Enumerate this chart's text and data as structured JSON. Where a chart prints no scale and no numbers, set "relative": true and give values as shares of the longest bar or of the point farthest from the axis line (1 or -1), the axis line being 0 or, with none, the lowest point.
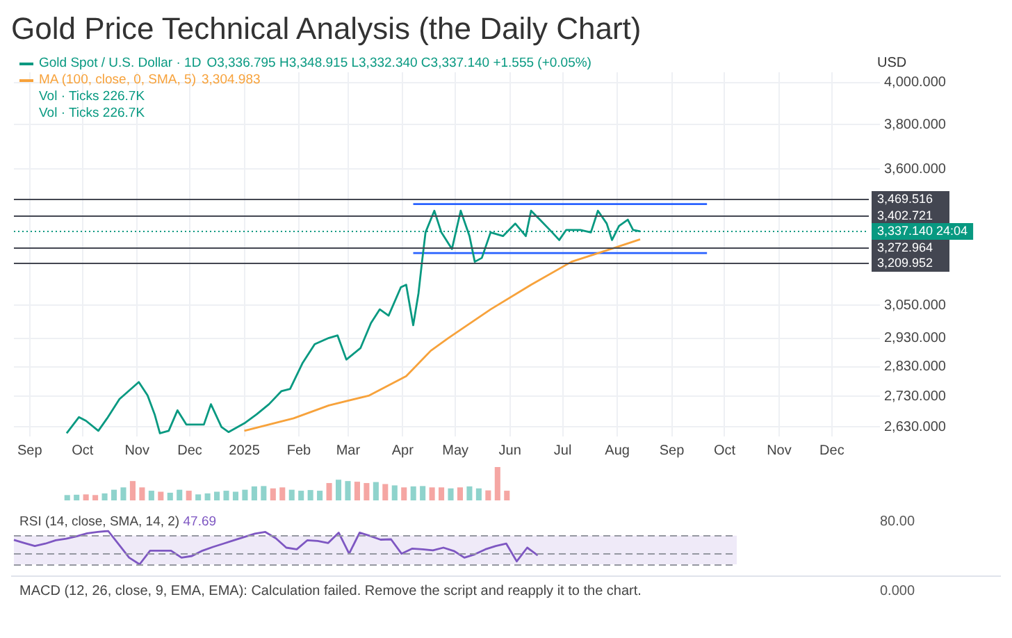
{
  "chart_data": [
    {
      "type": "line",
      "title": "Gold Price Technical Analysis (the Daily Chart)",
      "ylabel": "USD",
      "log": "y",
      "grid": true,
      "legend": "top left",
      "xlim": [
        "2024-08-23",
        "2025-12-22"
      ],
      "xticks": [
        {
          "value": "2024-09-01",
          "label": "Sep"
        },
        {
          "value": "2024-10-01",
          "label": "Oct"
        },
        {
          "value": "2024-11-01",
          "label": "Nov"
        },
        {
          "value": "2024-12-01",
          "label": "Dec"
        },
        {
          "value": "2025-01-01",
          "label": "2025"
        },
        {
          "value": "2025-02-01",
          "label": "Feb"
        },
        {
          "value": "2025-03-01",
          "label": "Mar"
        },
        {
          "value": "2025-04-01",
          "label": "Apr"
        },
        {
          "value": "2025-05-01",
          "label": "May"
        },
        {
          "value": "2025-06-01",
          "label": "Jun"
        },
        {
          "value": "2025-07-01",
          "label": "Jul"
        },
        {
          "value": "2025-08-01",
          "label": "Aug"
        },
        {
          "value": "2025-09-01",
          "label": "Sep"
        },
        {
          "value": "2025-10-01",
          "label": "Oct"
        },
        {
          "value": "2025-11-01",
          "label": "Nov"
        },
        {
          "value": "2025-12-01",
          "label": "Dec"
        }
      ],
      "ylim": [
        2600,
        4050
      ],
      "yticks": [
        {
          "value": 2630,
          "label": "2,630.000"
        },
        {
          "value": 2730,
          "label": "2,730.000"
        },
        {
          "value": 2830,
          "label": "2,830.000"
        },
        {
          "value": 2930,
          "label": "2,930.000"
        },
        {
          "value": 3050,
          "label": "3,050.000"
        },
        {
          "value": 3600,
          "label": "3,600.000"
        },
        {
          "value": 3800,
          "label": "3,800.000"
        },
        {
          "value": 4000,
          "label": "4,000.000"
        }
      ],
      "series": [
        {
          "name": "Gold Spot / U.S. Dollar · 1D",
          "color": "#089981",
          "x": [
            "2024-09-22",
            "2024-09-29",
            "2024-10-03",
            "2024-10-10",
            "2024-10-15",
            "2024-10-22",
            "2024-11-02",
            "2024-11-07",
            "2024-11-11",
            "2024-11-14",
            "2024-11-19",
            "2024-11-24",
            "2024-11-29",
            "2024-12-09",
            "2024-12-13",
            "2024-12-19",
            "2024-12-23",
            "2025-01-01",
            "2025-01-08",
            "2025-01-15",
            "2025-01-22",
            "2025-01-27",
            "2025-02-03",
            "2025-02-10",
            "2025-02-18",
            "2025-02-23",
            "2025-02-28",
            "2025-03-08",
            "2025-03-14",
            "2025-03-19",
            "2025-03-24",
            "2025-03-31",
            "2025-04-03",
            "2025-04-07",
            "2025-04-10",
            "2025-04-12",
            "2025-04-14",
            "2025-04-19",
            "2025-04-23",
            "2025-04-29",
            "2025-05-04",
            "2025-05-09",
            "2025-05-12",
            "2025-05-16",
            "2025-05-21",
            "2025-05-28",
            "2025-06-04",
            "2025-06-10",
            "2025-06-13",
            "2025-06-18",
            "2025-06-25",
            "2025-06-29",
            "2025-07-03",
            "2025-07-11",
            "2025-07-17",
            "2025-07-21",
            "2025-07-26",
            "2025-07-29",
            "2025-08-02",
            "2025-08-07",
            "2025-08-10",
            "2025-08-14"
          ],
          "values": [
            2610,
            2662,
            2650,
            2618,
            2658,
            2721,
            2778,
            2733,
            2671,
            2610,
            2618,
            2684,
            2638,
            2638,
            2704,
            2630,
            2614,
            2642,
            2671,
            2704,
            2747,
            2755,
            2842,
            2909,
            2931,
            2940,
            2855,
            2895,
            2985,
            3035,
            3012,
            3118,
            3127,
            2977,
            3095,
            3216,
            3333,
            3422,
            3333,
            3266,
            3422,
            3318,
            3216,
            3231,
            3333,
            3318,
            3369,
            3318,
            3422,
            3385,
            3333,
            3302,
            3343,
            3343,
            3333,
            3422,
            3369,
            3302,
            3359,
            3385,
            3343,
            3337
          ]
        },
        {
          "name": "MA (100, close, 0, SMA, 5)",
          "color": "#f7a23b",
          "x": [
            "2025-01-01",
            "2025-01-29",
            "2025-02-18",
            "2025-03-13",
            "2025-04-03",
            "2025-04-17",
            "2025-04-27",
            "2025-05-21",
            "2025-06-13",
            "2025-07-06",
            "2025-07-31",
            "2025-08-14"
          ],
          "values": [
            2618,
            2658,
            2700,
            2733,
            2798,
            2886,
            2931,
            3035,
            3127,
            3216,
            3272,
            3305
          ]
        },
        {
          "color": "#2962ff",
          "x": [
            "2025-04-07",
            "2025-09-21"
          ],
          "values": [
            3450,
            3450
          ]
        },
        {
          "color": "#2962ff",
          "x": [
            "2025-04-07",
            "2025-09-21"
          ],
          "values": [
            3250,
            3250
          ]
        }
      ],
      "ref_lines": [
        {
          "axis": "y",
          "value": 3469.516,
          "label": "3,469.516",
          "color": "#434651"
        },
        {
          "axis": "y",
          "value": 3402.721,
          "label": "3,402.721",
          "color": "#434651"
        },
        {
          "axis": "y",
          "value": 3337.14,
          "label": "3,337.140 24:04",
          "color": "#089981",
          "line_style": "dotted"
        },
        {
          "axis": "y",
          "value": 3272.964,
          "label": "3,272.964",
          "color": "#434651"
        },
        {
          "axis": "y",
          "value": 3209.952,
          "label": "3,209.952",
          "color": "#434651"
        }
      ],
      "annotations": [
        "O3,336.795 H3,348.915 L3,332.340 C3,337.140 +1.555 (+0.05%)",
        "3,304.983",
        "Vol · Ticks 226.7K",
        "Vol · Ticks 226.7K"
      ]
    },
    {
      "type": "bar",
      "relative": true,
      "categories": [
        null,
        null,
        null,
        null,
        null,
        null,
        null,
        null,
        null,
        null,
        null,
        null,
        null,
        null,
        null,
        null,
        null,
        null,
        null,
        null,
        null,
        null,
        null,
        null,
        null,
        null,
        null,
        null,
        null,
        null,
        null,
        null,
        null,
        null,
        null,
        null,
        null,
        null,
        null,
        null,
        null,
        null,
        null,
        null,
        null,
        null,
        null,
        null
      ],
      "values": [
        0.16,
        0.17,
        0.18,
        0.16,
        0.21,
        0.32,
        0.39,
        0.58,
        0.39,
        0.29,
        0.26,
        0.23,
        0.32,
        0.29,
        0.18,
        0.21,
        0.26,
        0.29,
        0.26,
        0.32,
        0.42,
        0.43,
        0.36,
        0.39,
        0.32,
        0.29,
        0.31,
        0.29,
        0.52,
        0.62,
        0.58,
        0.56,
        0.52,
        0.55,
        0.49,
        0.45,
        0.39,
        0.42,
        0.43,
        0.39,
        0.39,
        0.36,
        0.39,
        0.42,
        0.36,
        0.3,
        1,
        0.29
      ],
      "colors": [
        "#8fd3cc",
        "#8fd3cc",
        "#f5a6a3",
        "#f5a6a3",
        "#8fd3cc",
        "#8fd3cc",
        "#8fd3cc",
        "#f5a6a3",
        "#f5a6a3",
        "#8fd3cc",
        "#f5a6a3",
        "#8fd3cc",
        "#8fd3cc",
        "#f5a6a3",
        "#8fd3cc",
        "#8fd3cc",
        "#8fd3cc",
        "#8fd3cc",
        "#8fd3cc",
        "#8fd3cc",
        "#8fd3cc",
        "#8fd3cc",
        "#f5a6a3",
        "#f5a6a3",
        "#8fd3cc",
        "#8fd3cc",
        "#8fd3cc",
        "#8fd3cc",
        "#f5a6a3",
        "#8fd3cc",
        "#8fd3cc",
        "#f5a6a3",
        "#f5a6a3",
        "#8fd3cc",
        "#f5a6a3",
        "#8fd3cc",
        "#f5a6a3",
        "#8fd3cc",
        "#8fd3cc",
        "#f5a6a3",
        "#f5a6a3",
        "#8fd3cc",
        "#f5a6a3",
        "#8fd3cc",
        "#8fd3cc",
        "#f5a6a3",
        "#f5a6a3",
        "#f5a6a3"
      ]
    },
    {
      "type": "line",
      "relative": true,
      "title": "RSI (14, close, SMA, 14, 2)",
      "categories": [
        null,
        null,
        null,
        null,
        null,
        null,
        null,
        null,
        null,
        null,
        null,
        null,
        null,
        null,
        null,
        null,
        null,
        null,
        null,
        null,
        null,
        null,
        null,
        null,
        null,
        null,
        null,
        null,
        null,
        null,
        null,
        null,
        null,
        null,
        null,
        null,
        null,
        null,
        null,
        null,
        null,
        null,
        null,
        null,
        null,
        null,
        null,
        null,
        null,
        null,
        null,
        null,
        null,
        null,
        null,
        null,
        null,
        null,
        null,
        null,
        null,
        null,
        null,
        null,
        null,
        null,
        null,
        null,
        null,
        null
      ],
      "series": [
        {
          "color": "#7e57c2",
          "values": [
            0.73,
            0.64,
            0.55,
            0.62,
            0.72,
            0.77,
            0.84,
            0.93,
            0.97,
            1,
            0.6,
            0.2,
            0,
            0.41,
            0.41,
            0.41,
            0.2,
            0.25,
            0.41,
            0.52,
            0.62,
            0.72,
            0.82,
            0.92,
            0.97,
            0.78,
            0.5,
            0.45,
            0.72,
            0.7,
            0.64,
            0.95,
            0.32,
            0.95,
            0.85,
            0.74,
            0.75,
            0.32,
            0.47,
            0.45,
            0.42,
            0.5,
            0.4,
            0.2,
            0.3,
            0.45,
            0.55,
            0.62,
            0.09,
            0.5,
            0.27,
            null,
            null,
            null,
            null,
            null,
            null,
            null,
            null,
            null,
            null,
            null,
            null,
            null,
            null,
            null,
            null,
            null,
            null,
            null
          ]
        }
      ],
      "bands": [
        {
          "axis": "y",
          "from": 0,
          "to": 0.86,
          "color": "#efeaf8"
        }
      ],
      "ref_lines": [
        {
          "axis": "y",
          "value": 0.86,
          "color": "#9598a1",
          "line_style": "dashed"
        },
        {
          "axis": "y",
          "value": 0.32,
          "color": "#9598a1",
          "line_style": "dashed"
        },
        {
          "axis": "y",
          "value": 0,
          "color": "#9598a1",
          "line_style": "dashed"
        }
      ],
      "annotations": [
        "47.69",
        "80.00"
      ]
    },
    {
      "type": "other",
      "title": "MACD (12, 26, close, 9, EMA, EMA): Calculation failed. Remove the script and reapply it to the chart.",
      "annotations": [
        "0.000"
      ]
    }
  ]
}
